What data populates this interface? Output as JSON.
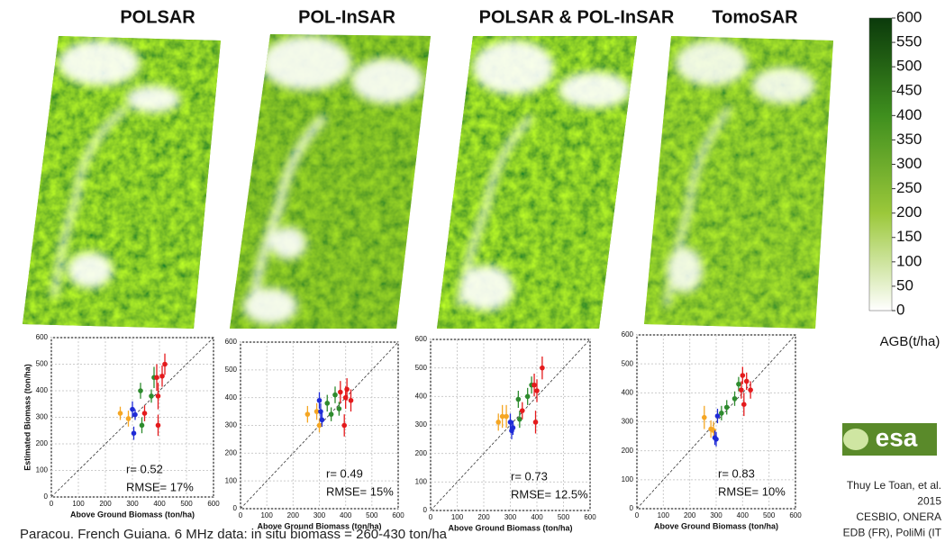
{
  "maps": [
    {
      "title": "POLSAR"
    },
    {
      "title": "POL-InSAR"
    },
    {
      "title": "POLSAR & POL-InSAR"
    },
    {
      "title": "TomoSAR"
    }
  ],
  "chart_data": [
    {
      "type": "scatter",
      "xlabel": "Above Ground Biomass (ton/ha)",
      "ylabel": "Estimated Biomass (ton/ha)",
      "xlim": [
        0,
        600
      ],
      "ylim": [
        0,
        600
      ],
      "xticks": [
        0,
        100,
        200,
        300,
        400,
        500,
        600
      ],
      "yticks": [
        0,
        100,
        200,
        300,
        400,
        500,
        600
      ],
      "grid": true,
      "annotations": [
        "r= 0.52",
        "RMSE= 17%"
      ],
      "series": [
        {
          "color": "#f5a623",
          "x": [
            255,
            285
          ],
          "values": [
            315,
            295
          ],
          "errors": [
            25,
            30
          ]
        },
        {
          "color": "#1f2bd6",
          "x": [
            300,
            305,
            310
          ],
          "values": [
            330,
            240,
            310
          ],
          "errors": [
            30,
            25,
            20
          ]
        },
        {
          "color": "#2e8b2e",
          "x": [
            330,
            335,
            370,
            380
          ],
          "values": [
            400,
            270,
            380,
            450
          ],
          "errors": [
            30,
            30,
            25,
            40
          ]
        },
        {
          "color": "#e41a1c",
          "x": [
            345,
            390,
            395,
            395,
            410,
            420
          ],
          "values": [
            315,
            450,
            270,
            380,
            455,
            500
          ],
          "errors": [
            30,
            50,
            40,
            50,
            40,
            40
          ]
        }
      ]
    },
    {
      "type": "scatter",
      "xlabel": "Above Ground Biomass (ton/ha)",
      "xlim": [
        0,
        600
      ],
      "ylim": [
        0,
        600
      ],
      "xticks": [
        0,
        100,
        200,
        300,
        400,
        500,
        600
      ],
      "yticks": [
        0,
        100,
        200,
        300,
        400,
        500,
        600
      ],
      "grid": true,
      "annotations": [
        "r= 0.49",
        "RMSE= 15%"
      ],
      "series": [
        {
          "color": "#f5a623",
          "x": [
            255,
            290,
            300
          ],
          "values": [
            340,
            350,
            300
          ],
          "errors": [
            30,
            30,
            25
          ]
        },
        {
          "color": "#1f2bd6",
          "x": [
            300,
            305,
            310
          ],
          "values": [
            390,
            350,
            320
          ],
          "errors": [
            30,
            30,
            25
          ]
        },
        {
          "color": "#2e8b2e",
          "x": [
            330,
            345,
            360,
            375
          ],
          "values": [
            380,
            340,
            410,
            360
          ],
          "errors": [
            30,
            25,
            30,
            25
          ]
        },
        {
          "color": "#e41a1c",
          "x": [
            380,
            395,
            400,
            405,
            420
          ],
          "values": [
            420,
            300,
            400,
            430,
            390
          ],
          "errors": [
            40,
            40,
            40,
            40,
            40
          ]
        }
      ]
    },
    {
      "type": "scatter",
      "xlabel": "Above Ground Biomass (ton/ha)",
      "xlim": [
        0,
        600
      ],
      "ylim": [
        0,
        600
      ],
      "xticks": [
        0,
        100,
        200,
        300,
        400,
        500,
        600
      ],
      "yticks": [
        0,
        100,
        200,
        300,
        400,
        500,
        600
      ],
      "grid": true,
      "annotations": [
        "r= 0.73",
        "RMSE= 12.5%"
      ],
      "series": [
        {
          "color": "#f5a623",
          "x": [
            255,
            270,
            285
          ],
          "values": [
            310,
            330,
            330
          ],
          "errors": [
            30,
            40,
            40
          ]
        },
        {
          "color": "#1f2bd6",
          "x": [
            300,
            305,
            310
          ],
          "values": [
            310,
            280,
            290
          ],
          "errors": [
            30,
            30,
            25
          ]
        },
        {
          "color": "#2e8b2e",
          "x": [
            330,
            335,
            365,
            380
          ],
          "values": [
            390,
            320,
            400,
            440
          ],
          "errors": [
            30,
            30,
            30,
            30
          ]
        },
        {
          "color": "#e41a1c",
          "x": [
            345,
            390,
            395,
            400,
            420
          ],
          "values": [
            350,
            440,
            310,
            420,
            500
          ],
          "errors": [
            30,
            40,
            40,
            40,
            40
          ]
        }
      ]
    },
    {
      "type": "scatter",
      "xlabel": "Above Ground Biomass (ton/ha)",
      "xlim": [
        0,
        600
      ],
      "ylim": [
        0,
        600
      ],
      "xticks": [
        0,
        100,
        200,
        300,
        400,
        500,
        600
      ],
      "yticks": [
        0,
        100,
        200,
        300,
        400,
        500,
        600
      ],
      "grid": true,
      "annotations": [
        "r= 0.83",
        "RMSE= 10%"
      ],
      "series": [
        {
          "color": "#f5a623",
          "x": [
            255,
            280,
            290
          ],
          "values": [
            315,
            275,
            270
          ],
          "errors": [
            40,
            30,
            30
          ]
        },
        {
          "color": "#1f2bd6",
          "x": [
            295,
            300,
            305
          ],
          "values": [
            245,
            240,
            320
          ],
          "errors": [
            25,
            25,
            25
          ]
        },
        {
          "color": "#2e8b2e",
          "x": [
            320,
            340,
            370,
            385
          ],
          "values": [
            330,
            350,
            380,
            430
          ],
          "errors": [
            25,
            25,
            25,
            25
          ]
        },
        {
          "color": "#e41a1c",
          "x": [
            395,
            400,
            405,
            415,
            430
          ],
          "values": [
            410,
            460,
            360,
            440,
            410
          ],
          "errors": [
            30,
            30,
            40,
            30,
            30
          ]
        }
      ]
    },
    {
      "type": "colorbar",
      "label": "AGB(t/ha)",
      "colors": [
        "#ffffff",
        "#9bc83a",
        "#3f8f1e",
        "#0b3a0b"
      ],
      "ylim": [
        0,
        600
      ],
      "yticks": [
        0,
        50,
        100,
        150,
        200,
        250,
        300,
        350,
        400,
        450,
        500,
        550,
        600
      ]
    }
  ],
  "logo": "esa",
  "credit": [
    "Thuy Le Toan, et al.",
    "2015",
    "CESBIO, ONERA",
    "EDB (FR), PoliMi (IT"
  ],
  "caption": "Paracou. French Guiana. 6 MHz data: in situ biomass = 260-430 ton/ha"
}
